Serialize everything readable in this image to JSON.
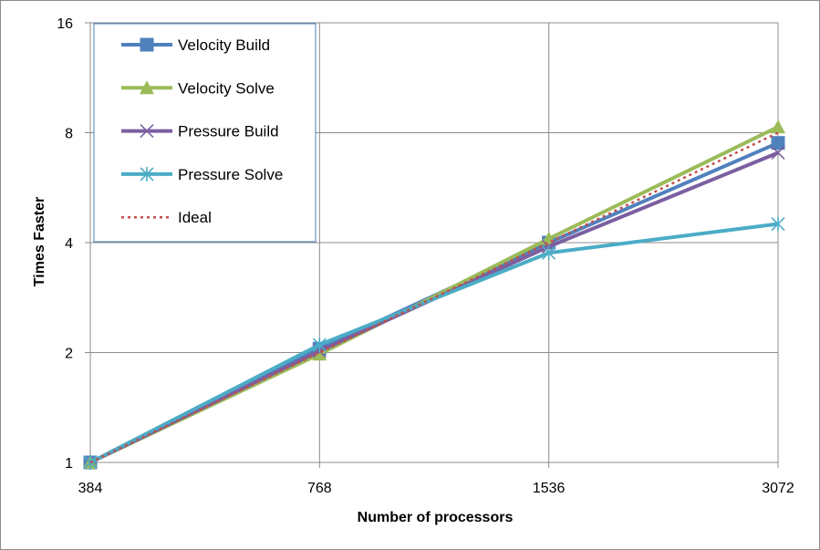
{
  "chart_data": {
    "type": "line",
    "title": "",
    "xlabel": "Number of processors",
    "ylabel": "Times Faster",
    "x_scale": "log2",
    "y_scale": "log2",
    "categories": [
      "384",
      "768",
      "1536",
      "3072"
    ],
    "x": [
      384,
      768,
      1536,
      3072
    ],
    "yticks": [
      1,
      2,
      4,
      8,
      16
    ],
    "ytick_labels": [
      "1",
      "2",
      "4",
      "8",
      "16"
    ],
    "ylim": [
      1,
      16
    ],
    "grid": true,
    "legend_position": "top-left",
    "series": [
      {
        "name": "Velocity Build",
        "values": [
          1,
          2.05,
          4.0,
          7.5
        ],
        "color": "#4f81bd",
        "marker": "square",
        "dash": "solid"
      },
      {
        "name": "Velocity Solve",
        "values": [
          1,
          1.98,
          4.1,
          8.3
        ],
        "color": "#9bbb59",
        "marker": "triangle",
        "dash": "solid"
      },
      {
        "name": "Pressure Build",
        "values": [
          1,
          2.02,
          3.9,
          7.05
        ],
        "color": "#7b5fa0",
        "marker": "x",
        "dash": "solid"
      },
      {
        "name": "Pressure Solve",
        "values": [
          1,
          2.1,
          3.75,
          4.5
        ],
        "color": "#4bacc6",
        "marker": "asterisk",
        "dash": "solid"
      },
      {
        "name": "Ideal",
        "values": [
          1,
          2,
          4,
          8
        ],
        "color": "#c0504d",
        "marker": "none",
        "dash": "dotted"
      }
    ]
  }
}
